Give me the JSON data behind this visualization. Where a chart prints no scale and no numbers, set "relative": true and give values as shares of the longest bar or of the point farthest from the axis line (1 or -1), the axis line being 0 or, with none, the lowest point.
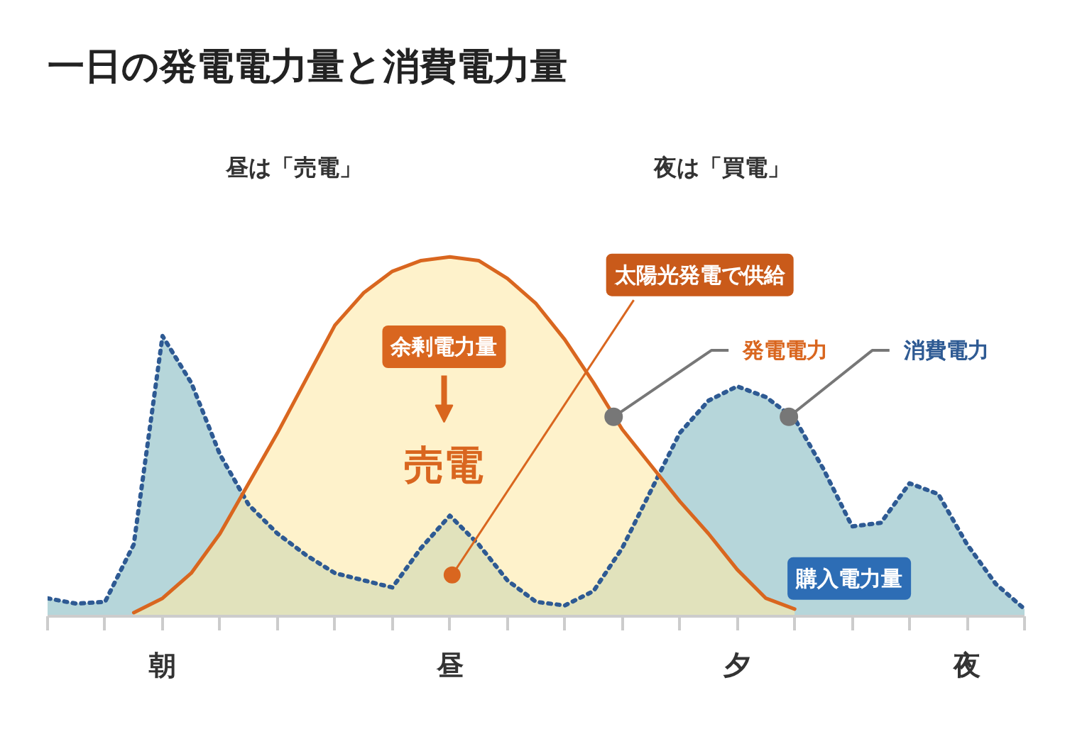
{
  "chart_data": {
    "type": "area",
    "title": "一日の発電電力量と消費電力量",
    "relative": true,
    "legend": false,
    "grid": false,
    "tick_labels": "x",
    "categories": [
      null,
      null,
      null,
      null,
      "朝",
      null,
      null,
      null,
      null,
      null,
      null,
      null,
      null,
      null,
      "昼",
      null,
      null,
      null,
      null,
      null,
      null,
      null,
      null,
      null,
      "夕",
      null,
      null,
      null,
      null,
      null,
      null,
      null,
      "夜",
      null,
      null
    ],
    "series": [
      {
        "name": "消費電力",
        "color": "#2e5a93",
        "line_style": "dotted",
        "values": [
          0.05,
          0.035,
          0.04,
          0.2,
          0.78,
          0.65,
          0.45,
          0.31,
          0.23,
          0.17,
          0.12,
          0.1,
          0.08,
          0.19,
          0.28,
          0.2,
          0.1,
          0.04,
          0.03,
          0.07,
          0.19,
          0.35,
          0.51,
          0.6,
          0.64,
          0.61,
          0.55,
          0.41,
          0.25,
          0.26,
          0.37,
          0.34,
          0.2,
          0.09,
          0.02
        ]
      },
      {
        "name": "発電電力",
        "color": "#d9661f",
        "line_style": "solid",
        "values": [
          null,
          null,
          null,
          0.01,
          0.05,
          0.12,
          0.23,
          0.37,
          0.51,
          0.66,
          0.81,
          0.9,
          0.96,
          0.99,
          1.0,
          0.99,
          0.94,
          0.87,
          0.77,
          0.65,
          0.52,
          0.42,
          0.32,
          0.23,
          0.13,
          0.05,
          0.02,
          null,
          null,
          null,
          null,
          null,
          null,
          null,
          null
        ]
      }
    ],
    "annotations": [
      "昼は「売電」",
      "夜は「買電」",
      "余剰電力量",
      "売電",
      "太陽光発電で供給",
      "購入電力量"
    ]
  }
}
